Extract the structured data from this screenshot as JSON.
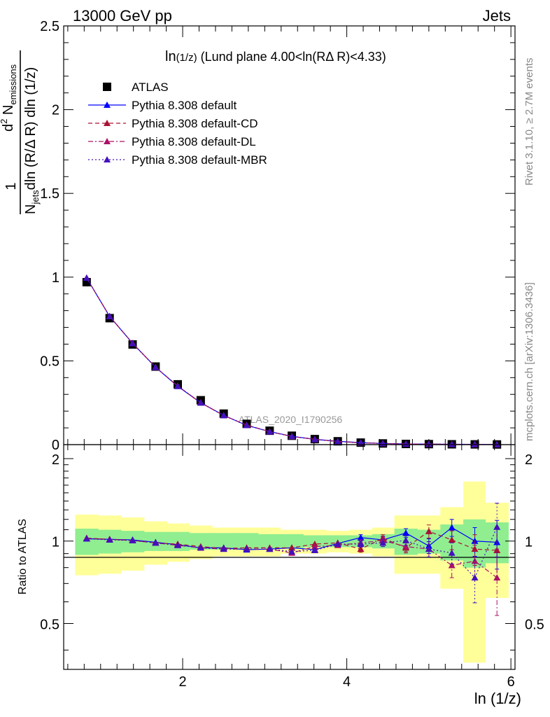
{
  "header": {
    "energy": "13000 GeV pp",
    "category": "Jets",
    "analysis_id": "ATLAS_2020_I1790256",
    "rivet_label": "Rivet 3.1.10, ≥ 2.7M events",
    "mcplots_label": "mcplots.cern.ch [arXiv:1306.3436]"
  },
  "chart_data": [
    {
      "type": "line",
      "panel": "main",
      "title": "ln(1/z) (Lund plane 4.00<ln(RΔ R)<4.33)",
      "title_parts": [
        "ln",
        "(1/z)",
        " (Lund plane 4.00<ln(RΔ R)<4.33)"
      ],
      "ylabel_parts": {
        "one": "1",
        "njets_main": "N",
        "njets_sub": "jets",
        "den_rest": "dln (R/Δ R) dln (1/z)",
        "d2": "d",
        "d2_sup": "2",
        "nem": " N",
        "nem_sub": "emissions"
      },
      "xlabel": "ln (1/z)",
      "xlim": [
        0.55,
        6.05
      ],
      "ylim": [
        0,
        2.5
      ],
      "y_ticks": [
        "0",
        "0.5",
        "1",
        "1.5",
        "2",
        "2.5"
      ],
      "x": [
        0.83,
        1.11,
        1.39,
        1.67,
        1.94,
        2.22,
        2.5,
        2.78,
        3.06,
        3.33,
        3.61,
        3.89,
        4.17,
        4.44,
        4.72,
        5.0,
        5.28,
        5.56,
        5.83
      ],
      "legend_position": "top-left",
      "series": [
        {
          "name": "ATLAS",
          "color": "#000000",
          "marker": "square",
          "dash": "none",
          "values": [
            0.97,
            0.755,
            0.598,
            0.466,
            0.36,
            0.265,
            0.185,
            0.124,
            0.083,
            0.053,
            0.033,
            0.02,
            0.012,
            0.007,
            0.004,
            0.003,
            0.002,
            0.0015,
            0.001
          ]
        },
        {
          "name": "Pythia 8.308 default",
          "color": "#0000ff",
          "marker": "triangle",
          "dash": "solid",
          "values": [
            0.995,
            0.765,
            0.605,
            0.462,
            0.348,
            0.25,
            0.175,
            0.115,
            0.078,
            0.05,
            0.032,
            0.02,
            0.012,
            0.007,
            0.004,
            0.003,
            0.002,
            0.0015,
            0.001
          ]
        },
        {
          "name": "Pythia 8.308 default-CD",
          "color": "#aa1133",
          "marker": "triangle",
          "dash": "dashed",
          "values": [
            0.995,
            0.766,
            0.605,
            0.462,
            0.35,
            0.25,
            0.174,
            0.117,
            0.078,
            0.049,
            0.032,
            0.019,
            0.011,
            0.007,
            0.004,
            0.003,
            0.002,
            0.0015,
            0.001
          ]
        },
        {
          "name": "Pythia 8.308 default-DL",
          "color": "#aa1166",
          "marker": "triangle",
          "dash": "dashdot",
          "values": [
            0.995,
            0.766,
            0.605,
            0.462,
            0.35,
            0.251,
            0.174,
            0.116,
            0.077,
            0.049,
            0.031,
            0.019,
            0.011,
            0.007,
            0.004,
            0.003,
            0.002,
            0.0015,
            0.001
          ]
        },
        {
          "name": "Pythia 8.308 default-MBR",
          "color": "#4411bb",
          "marker": "triangle",
          "dash": "dotted",
          "values": [
            0.995,
            0.766,
            0.604,
            0.461,
            0.349,
            0.25,
            0.174,
            0.115,
            0.077,
            0.049,
            0.031,
            0.019,
            0.011,
            0.007,
            0.004,
            0.003,
            0.002,
            0.0015,
            0.001
          ]
        }
      ]
    },
    {
      "type": "line",
      "panel": "ratio",
      "ylabel": "Ratio to ATLAS",
      "xlabel": "ln (1/z)",
      "xlim": [
        0.55,
        6.05
      ],
      "ylim": [
        0.34,
        2.25
      ],
      "x_ticks": [
        "2",
        "4",
        "6"
      ],
      "y_ticks": [
        "0.5",
        "1",
        "2"
      ],
      "x": [
        0.83,
        1.11,
        1.39,
        1.67,
        1.94,
        2.22,
        2.5,
        2.78,
        3.06,
        3.33,
        3.61,
        3.89,
        4.17,
        4.44,
        4.72,
        5.0,
        5.28,
        5.56,
        5.83
      ],
      "bin_edges": [
        0.69,
        0.97,
        1.25,
        1.53,
        1.81,
        2.08,
        2.36,
        2.64,
        2.92,
        3.19,
        3.47,
        3.75,
        4.03,
        4.31,
        4.58,
        4.86,
        5.14,
        5.42,
        5.69,
        5.97
      ],
      "band_inner": {
        "color": "#90ee90",
        "low": [
          0.89,
          0.9,
          0.91,
          0.92,
          0.92,
          0.93,
          0.93,
          0.93,
          0.94,
          0.94,
          0.95,
          0.95,
          0.95,
          0.94,
          0.89,
          0.9,
          0.85,
          0.8,
          0.83
        ],
        "high": [
          1.11,
          1.1,
          1.09,
          1.08,
          1.08,
          1.07,
          1.07,
          1.07,
          1.06,
          1.06,
          1.05,
          1.05,
          1.05,
          1.06,
          1.11,
          1.1,
          1.15,
          1.2,
          1.17
        ]
      },
      "band_outer": {
        "color": "#ffff99",
        "low": [
          0.75,
          0.76,
          0.78,
          0.82,
          0.84,
          0.86,
          0.88,
          0.88,
          0.88,
          0.9,
          0.9,
          0.91,
          0.9,
          0.88,
          0.76,
          0.76,
          0.67,
          0.36,
          0.62
        ],
        "high": [
          1.25,
          1.24,
          1.22,
          1.18,
          1.16,
          1.14,
          1.12,
          1.12,
          1.12,
          1.1,
          1.1,
          1.09,
          1.1,
          1.12,
          1.24,
          1.24,
          1.33,
          1.65,
          1.38
        ]
      },
      "reference": 1,
      "series": [
        {
          "name": "Pythia 8.308 default",
          "color": "#0000ff",
          "dash": "solid",
          "values": [
            1.02,
            1.015,
            1.01,
            0.99,
            0.97,
            0.945,
            0.945,
            0.93,
            0.935,
            0.945,
            0.93,
            0.98,
            1.03,
            1.01,
            1.07,
            0.96,
            1.12,
            1.0,
            0.99
          ],
          "err": [
            0.01,
            0.01,
            0.01,
            0.01,
            0.01,
            0.01,
            0.01,
            0.01,
            0.01,
            0.01,
            0.01,
            0.015,
            0.025,
            0.03,
            0.04,
            0.06,
            0.08,
            0.12,
            0.2
          ]
        },
        {
          "name": "Pythia 8.308 default-CD",
          "color": "#aa1133",
          "dash": "dashed",
          "values": [
            1.025,
            1.015,
            1.005,
            0.985,
            0.975,
            0.955,
            0.94,
            0.945,
            0.945,
            0.945,
            0.975,
            0.985,
            0.935,
            1.025,
            0.945,
            1.085,
            1.01,
            0.935,
            0.925
          ],
          "err": [
            0.01,
            0.01,
            0.01,
            0.01,
            0.01,
            0.01,
            0.01,
            0.01,
            0.01,
            0.01,
            0.01,
            0.015,
            0.025,
            0.03,
            0.04,
            0.06,
            0.08,
            0.12,
            0.2
          ]
        },
        {
          "name": "Pythia 8.308 default-DL",
          "color": "#aa1166",
          "dash": "dashdot",
          "values": [
            1.025,
            1.015,
            1.005,
            0.985,
            0.965,
            0.945,
            0.935,
            0.935,
            0.935,
            0.905,
            0.955,
            0.965,
            0.985,
            1.005,
            0.955,
            0.935,
            0.815,
            0.845,
            0.735
          ],
          "err": [
            0.01,
            0.01,
            0.01,
            0.01,
            0.01,
            0.01,
            0.01,
            0.01,
            0.01,
            0.01,
            0.01,
            0.015,
            0.025,
            0.03,
            0.04,
            0.06,
            0.08,
            0.12,
            0.2
          ]
        },
        {
          "name": "Pythia 8.308 default-MBR",
          "color": "#4411bb",
          "dash": "dotted",
          "values": [
            1.02,
            1.01,
            1.005,
            0.985,
            0.965,
            0.945,
            0.935,
            0.935,
            0.935,
            0.915,
            0.925,
            0.975,
            0.975,
            0.985,
            1.005,
            0.935,
            0.905,
            0.735,
            1.125
          ],
          "err": [
            0.01,
            0.01,
            0.01,
            0.01,
            0.01,
            0.01,
            0.01,
            0.01,
            0.01,
            0.01,
            0.01,
            0.015,
            0.025,
            0.03,
            0.04,
            0.06,
            0.08,
            0.14,
            0.25
          ]
        }
      ]
    }
  ]
}
